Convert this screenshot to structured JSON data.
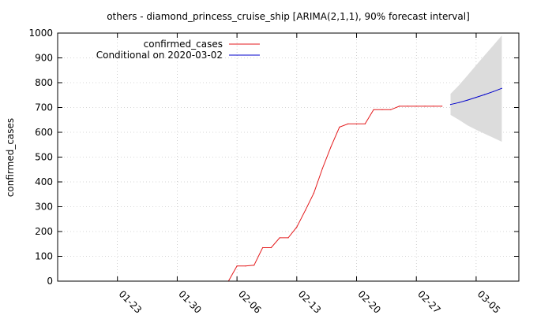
{
  "chart_data": {
    "type": "line",
    "title": "others - diamond_princess_cruise_ship [ARIMA(2,1,1), 90% forecast interval]",
    "xlabel": "",
    "ylabel": "confirmed_cases",
    "xlim": [
      "2020-01-16",
      "2020-03-10"
    ],
    "ylim": [
      0,
      1000
    ],
    "yticks": [
      0,
      100,
      200,
      300,
      400,
      500,
      600,
      700,
      800,
      900,
      1000
    ],
    "xticks": [
      {
        "date": "2020-01-23",
        "label": "01-23"
      },
      {
        "date": "2020-01-30",
        "label": "01-30"
      },
      {
        "date": "2020-02-06",
        "label": "02-06"
      },
      {
        "date": "2020-02-13",
        "label": "02-13"
      },
      {
        "date": "2020-02-20",
        "label": "02-20"
      },
      {
        "date": "2020-02-27",
        "label": "02-27"
      },
      {
        "date": "2020-03-05",
        "label": "03-05"
      }
    ],
    "grid": true,
    "legend_position": "top-left",
    "series": [
      {
        "name": "confirmed_cases",
        "color": "#e41a1c",
        "points": [
          [
            "2020-02-05",
            0
          ],
          [
            "2020-02-06",
            61
          ],
          [
            "2020-02-07",
            61
          ],
          [
            "2020-02-08",
            64
          ],
          [
            "2020-02-09",
            135
          ],
          [
            "2020-02-10",
            135
          ],
          [
            "2020-02-11",
            175
          ],
          [
            "2020-02-12",
            175
          ],
          [
            "2020-02-13",
            218
          ],
          [
            "2020-02-14",
            285
          ],
          [
            "2020-02-15",
            355
          ],
          [
            "2020-02-16",
            454
          ],
          [
            "2020-02-17",
            542
          ],
          [
            "2020-02-18",
            621
          ],
          [
            "2020-02-19",
            634
          ],
          [
            "2020-02-20",
            634
          ],
          [
            "2020-02-21",
            634
          ],
          [
            "2020-02-22",
            691
          ],
          [
            "2020-02-23",
            691
          ],
          [
            "2020-02-24",
            691
          ],
          [
            "2020-02-25",
            705
          ],
          [
            "2020-02-26",
            705
          ],
          [
            "2020-02-27",
            705
          ],
          [
            "2020-02-28",
            705
          ],
          [
            "2020-02-29",
            705
          ],
          [
            "2020-03-01",
            705
          ]
        ]
      },
      {
        "name": "Conditional on 2020-03-02",
        "color": "#0000cc",
        "points": [
          [
            "2020-03-02",
            712
          ],
          [
            "2020-03-03",
            720
          ],
          [
            "2020-03-04",
            730
          ],
          [
            "2020-03-05",
            741
          ],
          [
            "2020-03-06",
            752
          ],
          [
            "2020-03-07",
            764
          ],
          [
            "2020-03-08",
            777
          ]
        ]
      }
    ],
    "forecast_interval": {
      "color": "#dcdcdc",
      "points": [
        [
          "2020-03-02",
          670,
          755
        ],
        [
          "2020-03-03",
          650,
          790
        ],
        [
          "2020-03-04",
          628,
          830
        ],
        [
          "2020-03-05",
          610,
          870
        ],
        [
          "2020-03-06",
          594,
          910
        ],
        [
          "2020-03-07",
          578,
          950
        ],
        [
          "2020-03-08",
          562,
          990
        ]
      ]
    }
  }
}
